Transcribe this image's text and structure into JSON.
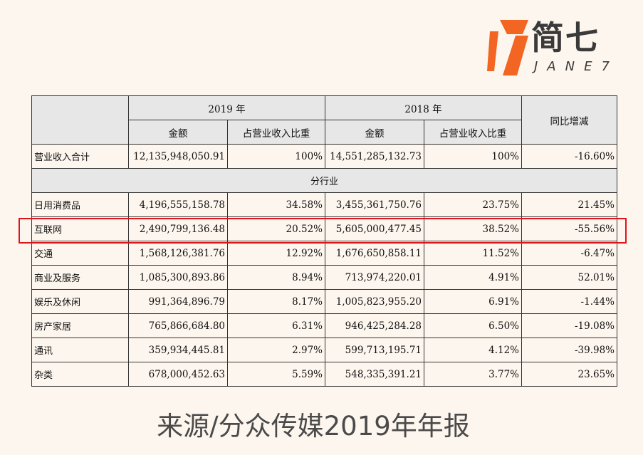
{
  "logo": {
    "cn": "简七",
    "en": "JANE7",
    "colors": {
      "orange": "#f26522",
      "dark": "#3a3a3a"
    }
  },
  "table": {
    "year_2019": "2019 年",
    "year_2018": "2018 年",
    "yoy": "同比增减",
    "amount": "金额",
    "share": "占营业收入比重",
    "total": {
      "label": "营业收入合计",
      "v2019": "12,135,948,050.91",
      "p2019": "100%",
      "v2018": "14,551,285,132.73",
      "p2018": "100%",
      "yoy": "-16.60%"
    },
    "section": "分行业",
    "rows": [
      {
        "label": "日用消费品",
        "v2019": "4,196,555,158.78",
        "p2019": "34.58%",
        "v2018": "3,455,361,750.76",
        "p2018": "23.75%",
        "yoy": "21.45%"
      },
      {
        "label": "互联网",
        "v2019": "2,490,799,136.48",
        "p2019": "20.52%",
        "v2018": "5,605,000,477.45",
        "p2018": "38.52%",
        "yoy": "-55.56%"
      },
      {
        "label": "交通",
        "v2019": "1,568,126,381.76",
        "p2019": "12.92%",
        "v2018": "1,676,650,858.11",
        "p2018": "11.52%",
        "yoy": "-6.47%"
      },
      {
        "label": "商业及服务",
        "v2019": "1,085,300,893.86",
        "p2019": "8.94%",
        "v2018": "713,974,220.01",
        "p2018": "4.91%",
        "yoy": "52.01%"
      },
      {
        "label": "娱乐及休闲",
        "v2019": "991,364,896.79",
        "p2019": "8.17%",
        "v2018": "1,005,823,955.20",
        "p2018": "6.91%",
        "yoy": "-1.44%"
      },
      {
        "label": "房产家居",
        "v2019": "765,866,684.80",
        "p2019": "6.31%",
        "v2018": "946,425,284.28",
        "p2018": "6.50%",
        "yoy": "-19.08%"
      },
      {
        "label": "通讯",
        "v2019": "359,934,445.81",
        "p2019": "2.97%",
        "v2018": "599,713,195.71",
        "p2018": "4.12%",
        "yoy": "-39.98%"
      },
      {
        "label": "杂类",
        "v2019": "678,000,452.63",
        "p2019": "5.59%",
        "v2018": "548,335,391.21",
        "p2018": "3.77%",
        "yoy": "23.65%"
      }
    ],
    "highlight_color": "#e0141b"
  },
  "caption": "来源/分众传媒2019年年报"
}
